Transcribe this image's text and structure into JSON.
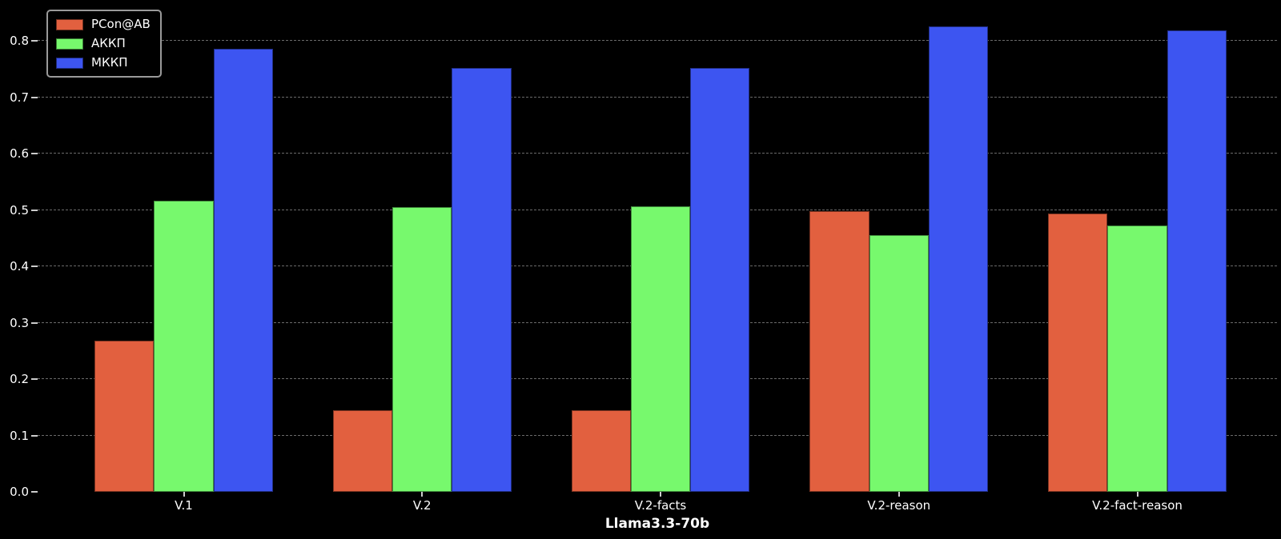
{
  "chart_data": {
    "type": "bar",
    "title": "",
    "xlabel": "Llama3.3-70b",
    "ylabel": "",
    "categories": [
      "V.1",
      "V.2",
      "V.2-facts",
      "V.2-reason",
      "V.2-fact-reason"
    ],
    "series": [
      {
        "name": "PCon@AB",
        "color": "#e2603f",
        "values": [
          0.268,
          0.145,
          0.145,
          0.498,
          0.493
        ]
      },
      {
        "name": "АККП",
        "color": "#77f96d",
        "values": [
          0.517,
          0.505,
          0.506,
          0.455,
          0.472
        ]
      },
      {
        "name": "МККП",
        "color": "#3d55f1",
        "values": [
          0.786,
          0.752,
          0.752,
          0.826,
          0.819
        ]
      }
    ],
    "yticks": [
      0.0,
      0.1,
      0.2,
      0.3,
      0.4,
      0.5,
      0.6,
      0.7,
      0.8
    ],
    "ytick_labels": [
      "0.0",
      "0.1",
      "0.2",
      "0.3",
      "0.4",
      "0.5",
      "0.6",
      "0.7",
      "0.8"
    ],
    "ylim": [
      0,
      0.861
    ],
    "grid": "horizontal-dashed",
    "legend_position": "upper-left",
    "background_color": "#000000",
    "text_color": "#ffffff",
    "gridline_color": "#7d7d7d"
  }
}
